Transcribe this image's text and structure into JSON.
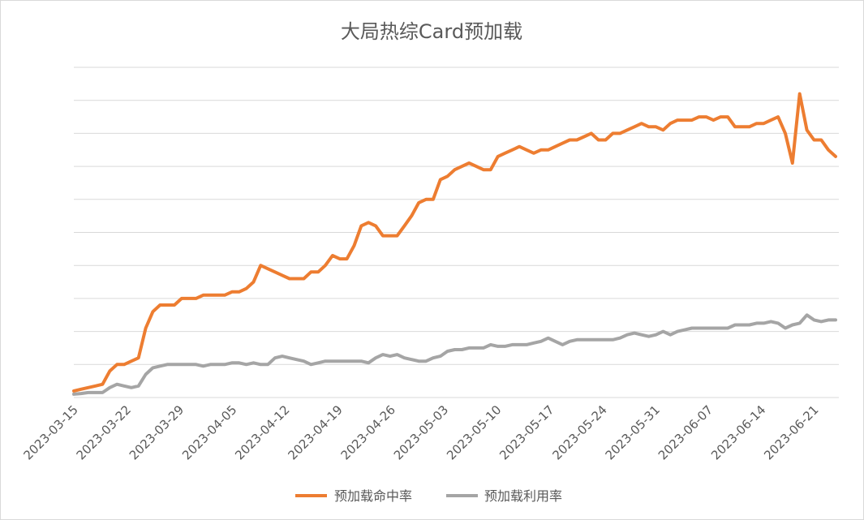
{
  "chart_data": {
    "type": "line",
    "title": "大局热综Card预加载",
    "xlabel": "",
    "ylabel": "",
    "x_tick_labels": [
      "2023-03-15",
      "2023-03-22",
      "2023-03-29",
      "2023-04-05",
      "2023-04-12",
      "2023-04-19",
      "2023-04-26",
      "2023-05-03",
      "2023-05-10",
      "2023-05-17",
      "2023-05-24",
      "2023-05-31",
      "2023-06-07",
      "2023-06-14",
      "2023-06-21"
    ],
    "y_tick_labels_visible": false,
    "ylim": [
      0,
      10
    ],
    "grid": true,
    "legend_position": "bottom",
    "series": [
      {
        "name": "预加载命中率",
        "color": "#ed7d31",
        "values": [
          0.2,
          0.25,
          0.3,
          0.35,
          0.4,
          0.8,
          1.0,
          1.0,
          1.1,
          1.2,
          2.1,
          2.6,
          2.8,
          2.8,
          2.8,
          3.0,
          3.0,
          3.0,
          3.1,
          3.1,
          3.1,
          3.1,
          3.2,
          3.2,
          3.3,
          3.5,
          4.0,
          3.9,
          3.8,
          3.7,
          3.6,
          3.6,
          3.6,
          3.8,
          3.8,
          4.0,
          4.3,
          4.2,
          4.2,
          4.6,
          5.2,
          5.3,
          5.2,
          4.9,
          4.9,
          4.9,
          5.2,
          5.5,
          5.9,
          6.0,
          6.0,
          6.6,
          6.7,
          6.9,
          7.0,
          7.1,
          7.0,
          6.9,
          6.9,
          7.3,
          7.4,
          7.5,
          7.6,
          7.5,
          7.4,
          7.5,
          7.5,
          7.6,
          7.7,
          7.8,
          7.8,
          7.9,
          8.0,
          7.8,
          7.8,
          8.0,
          8.0,
          8.1,
          8.2,
          8.3,
          8.2,
          8.2,
          8.1,
          8.3,
          8.4,
          8.4,
          8.4,
          8.5,
          8.5,
          8.4,
          8.5,
          8.5,
          8.2,
          8.2,
          8.2,
          8.3,
          8.3,
          8.4,
          8.5,
          8.0,
          7.1,
          9.2,
          8.1,
          7.8,
          7.8,
          7.5,
          7.3
        ]
      },
      {
        "name": "预加载利用率",
        "color": "#a5a5a5",
        "values": [
          0.1,
          0.12,
          0.15,
          0.15,
          0.15,
          0.3,
          0.4,
          0.35,
          0.3,
          0.35,
          0.7,
          0.9,
          0.95,
          1.0,
          1.0,
          1.0,
          1.0,
          1.0,
          0.95,
          1.0,
          1.0,
          1.0,
          1.05,
          1.05,
          1.0,
          1.05,
          1.0,
          1.0,
          1.2,
          1.25,
          1.2,
          1.15,
          1.1,
          1.0,
          1.05,
          1.1,
          1.1,
          1.1,
          1.1,
          1.1,
          1.1,
          1.05,
          1.2,
          1.3,
          1.25,
          1.3,
          1.2,
          1.15,
          1.1,
          1.1,
          1.2,
          1.25,
          1.4,
          1.45,
          1.45,
          1.5,
          1.5,
          1.5,
          1.6,
          1.55,
          1.55,
          1.6,
          1.6,
          1.6,
          1.65,
          1.7,
          1.8,
          1.7,
          1.6,
          1.7,
          1.75,
          1.75,
          1.75,
          1.75,
          1.75,
          1.75,
          1.8,
          1.9,
          1.95,
          1.9,
          1.85,
          1.9,
          2.0,
          1.9,
          2.0,
          2.05,
          2.1,
          2.1,
          2.1,
          2.1,
          2.1,
          2.1,
          2.2,
          2.2,
          2.2,
          2.25,
          2.25,
          2.3,
          2.25,
          2.1,
          2.2,
          2.25,
          2.5,
          2.35,
          2.3,
          2.35,
          2.35
        ]
      }
    ]
  }
}
